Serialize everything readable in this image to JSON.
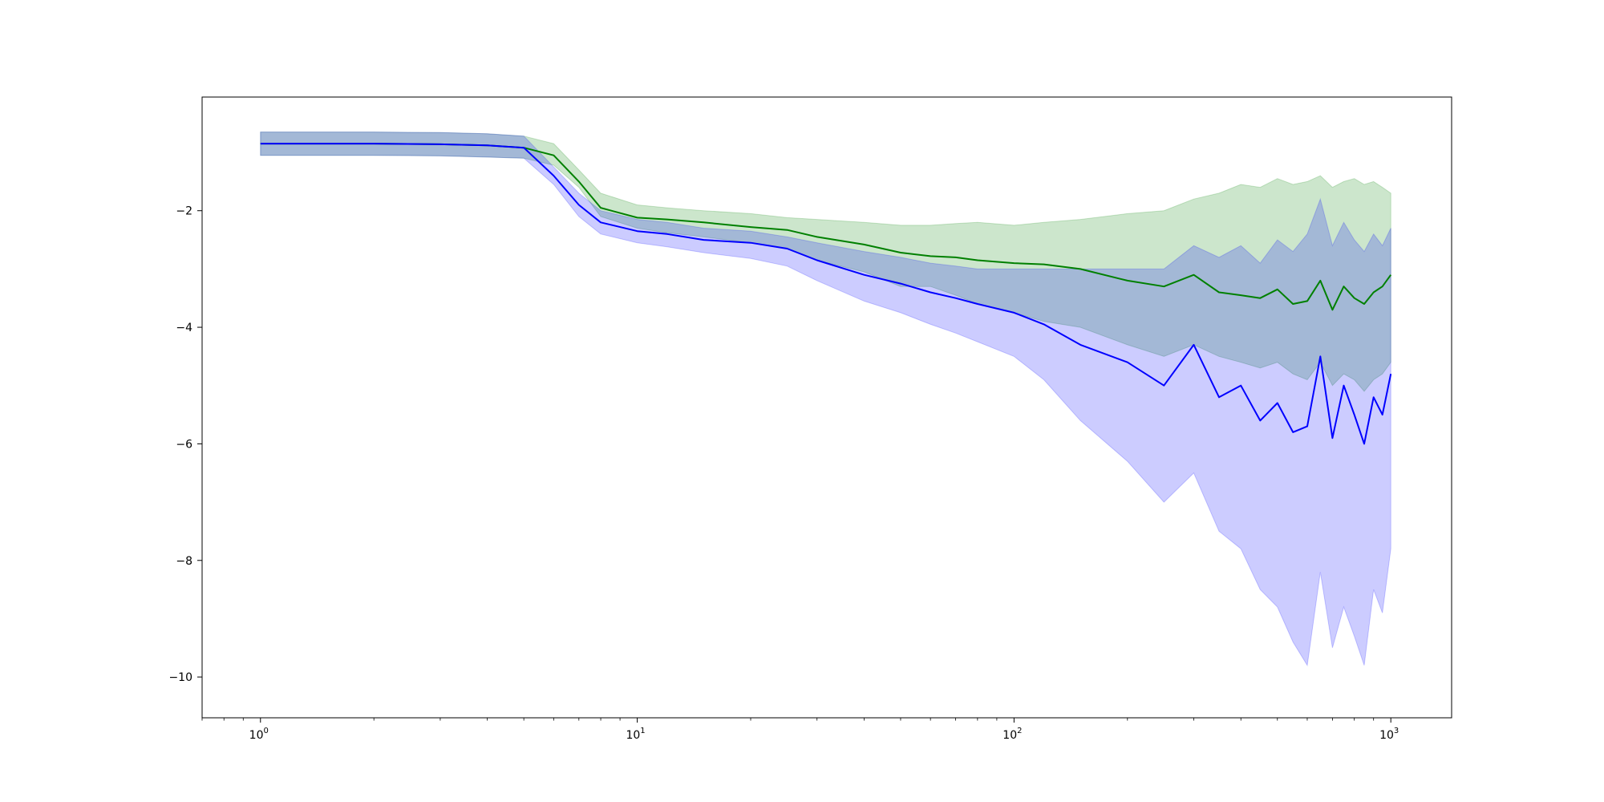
{
  "chart_data": {
    "type": "line",
    "title": "",
    "xlabel": "",
    "ylabel": "",
    "xscale": "log",
    "xlim": [
      0.7,
      1450
    ],
    "ylim": [
      -10.7,
      -0.05
    ],
    "grid": false,
    "legend": "none",
    "x_ticks": [
      {
        "value": 1,
        "label_base": "10",
        "label_exp": "0"
      },
      {
        "value": 10,
        "label_base": "10",
        "label_exp": "1"
      },
      {
        "value": 100,
        "label_base": "10",
        "label_exp": "2"
      },
      {
        "value": 1000,
        "label_base": "10",
        "label_exp": "3"
      }
    ],
    "y_ticks": [
      {
        "value": -2,
        "label": "−2"
      },
      {
        "value": -4,
        "label": "−4"
      },
      {
        "value": -6,
        "label": "−6"
      },
      {
        "value": -8,
        "label": "−8"
      },
      {
        "value": -10,
        "label": "−10"
      }
    ],
    "series": [
      {
        "color": "#008000",
        "band_color": "#008000",
        "band_opacity": 0.2,
        "x": [
          1,
          2,
          3,
          4,
          5,
          6,
          7,
          8,
          10,
          12,
          15,
          20,
          25,
          30,
          40,
          50,
          60,
          70,
          80,
          100,
          120,
          150,
          200,
          250,
          300,
          350,
          400,
          450,
          500,
          550,
          600,
          650,
          700,
          750,
          800,
          850,
          900,
          950,
          1000
        ],
        "mean": [
          -0.85,
          -0.85,
          -0.86,
          -0.88,
          -0.92,
          -1.05,
          -1.5,
          -1.95,
          -2.12,
          -2.15,
          -2.2,
          -2.28,
          -2.33,
          -2.45,
          -2.58,
          -2.72,
          -2.78,
          -2.8,
          -2.85,
          -2.9,
          -2.92,
          -3.0,
          -3.2,
          -3.3,
          -3.1,
          -3.4,
          -3.45,
          -3.5,
          -3.35,
          -3.6,
          -3.55,
          -3.2,
          -3.7,
          -3.3,
          -3.5,
          -3.6,
          -3.4,
          -3.3,
          -3.1
        ],
        "lower": [
          -1.05,
          -1.05,
          -1.06,
          -1.08,
          -1.1,
          -1.22,
          -1.6,
          -2.1,
          -2.3,
          -2.38,
          -2.45,
          -2.55,
          -2.65,
          -2.85,
          -3.05,
          -3.3,
          -3.3,
          -3.45,
          -3.6,
          -3.75,
          -3.9,
          -4.0,
          -4.3,
          -4.5,
          -4.3,
          -4.5,
          -4.6,
          -4.7,
          -4.6,
          -4.8,
          -4.9,
          -4.6,
          -5.0,
          -4.8,
          -4.9,
          -5.1,
          -4.9,
          -4.8,
          -4.6
        ],
        "upper": [
          -0.65,
          -0.65,
          -0.66,
          -0.68,
          -0.72,
          -0.85,
          -1.3,
          -1.7,
          -1.9,
          -1.95,
          -2.0,
          -2.05,
          -2.12,
          -2.15,
          -2.2,
          -2.25,
          -2.25,
          -2.22,
          -2.2,
          -2.25,
          -2.2,
          -2.15,
          -2.05,
          -2.0,
          -1.8,
          -1.7,
          -1.55,
          -1.6,
          -1.45,
          -1.55,
          -1.5,
          -1.4,
          -1.6,
          -1.5,
          -1.45,
          -1.55,
          -1.5,
          -1.6,
          -1.7
        ]
      },
      {
        "color": "#0000ff",
        "band_color": "#0000ff",
        "band_opacity": 0.2,
        "x": [
          1,
          2,
          3,
          4,
          5,
          6,
          7,
          8,
          10,
          12,
          15,
          20,
          25,
          30,
          40,
          50,
          60,
          70,
          80,
          100,
          120,
          150,
          200,
          250,
          300,
          350,
          400,
          450,
          500,
          550,
          600,
          650,
          700,
          750,
          800,
          850,
          900,
          950,
          1000
        ],
        "mean": [
          -0.85,
          -0.85,
          -0.86,
          -0.88,
          -0.92,
          -1.4,
          -1.9,
          -2.2,
          -2.35,
          -2.4,
          -2.5,
          -2.55,
          -2.65,
          -2.85,
          -3.1,
          -3.25,
          -3.4,
          -3.5,
          -3.6,
          -3.75,
          -3.95,
          -4.3,
          -4.6,
          -5.0,
          -4.3,
          -5.2,
          -5.0,
          -5.6,
          -5.3,
          -5.8,
          -5.7,
          -4.5,
          -5.9,
          -5.0,
          -5.5,
          -6.0,
          -5.2,
          -5.5,
          -4.8
        ],
        "lower": [
          -1.05,
          -1.05,
          -1.06,
          -1.08,
          -1.1,
          -1.55,
          -2.1,
          -2.4,
          -2.55,
          -2.62,
          -2.72,
          -2.82,
          -2.95,
          -3.2,
          -3.55,
          -3.75,
          -3.95,
          -4.1,
          -4.25,
          -4.5,
          -4.9,
          -5.6,
          -6.3,
          -7.0,
          -6.5,
          -7.5,
          -7.8,
          -8.5,
          -8.8,
          -9.4,
          -9.8,
          -8.2,
          -9.5,
          -8.8,
          -9.3,
          -9.8,
          -8.5,
          -8.9,
          -7.8
        ],
        "upper": [
          -0.65,
          -0.65,
          -0.66,
          -0.68,
          -0.72,
          -1.25,
          -1.7,
          -2.0,
          -2.15,
          -2.2,
          -2.3,
          -2.35,
          -2.45,
          -2.55,
          -2.7,
          -2.8,
          -2.9,
          -2.95,
          -3.0,
          -3.0,
          -3.0,
          -3.0,
          -3.0,
          -3.0,
          -2.6,
          -2.8,
          -2.6,
          -2.9,
          -2.5,
          -2.7,
          -2.4,
          -1.8,
          -2.6,
          -2.2,
          -2.5,
          -2.7,
          -2.4,
          -2.6,
          -2.3
        ]
      }
    ]
  }
}
